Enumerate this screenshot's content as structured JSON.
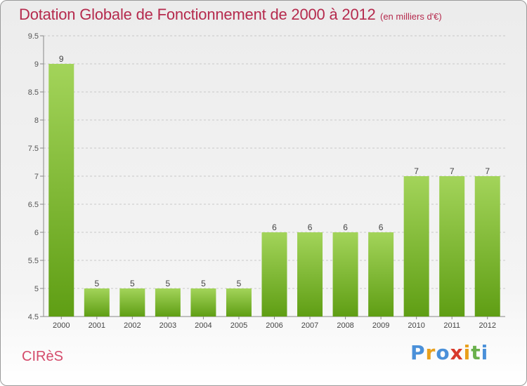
{
  "header": {
    "title": "Dotation Globale de Fonctionnement de 2000 à 2012",
    "unit": "(en milliers d'€)"
  },
  "footer": {
    "place": "CIRèS",
    "brand": "Proxiti"
  },
  "colors": {
    "title": "#b52a4d",
    "place": "#d44a6a",
    "bar_top": "#a3d45a",
    "bar_bottom": "#5f9e14",
    "axis": "#888888",
    "grid": "#c8c8c8"
  },
  "chart_data": {
    "type": "bar",
    "title": "Dotation Globale de Fonctionnement de 2000 à 2012",
    "categories": [
      "2000",
      "2001",
      "2002",
      "2003",
      "2004",
      "2005",
      "2006",
      "2007",
      "2008",
      "2009",
      "2010",
      "2011",
      "2012"
    ],
    "values": [
      9,
      5,
      5,
      5,
      5,
      5,
      6,
      6,
      6,
      6,
      7,
      7,
      7
    ],
    "ylim": [
      4.5,
      9.5
    ],
    "yticks": [
      "4.5",
      "5",
      "5.5",
      "6",
      "6.5",
      "7",
      "7.5",
      "8",
      "8.5",
      "9",
      "9.5"
    ],
    "grid": true,
    "legend": "none"
  }
}
